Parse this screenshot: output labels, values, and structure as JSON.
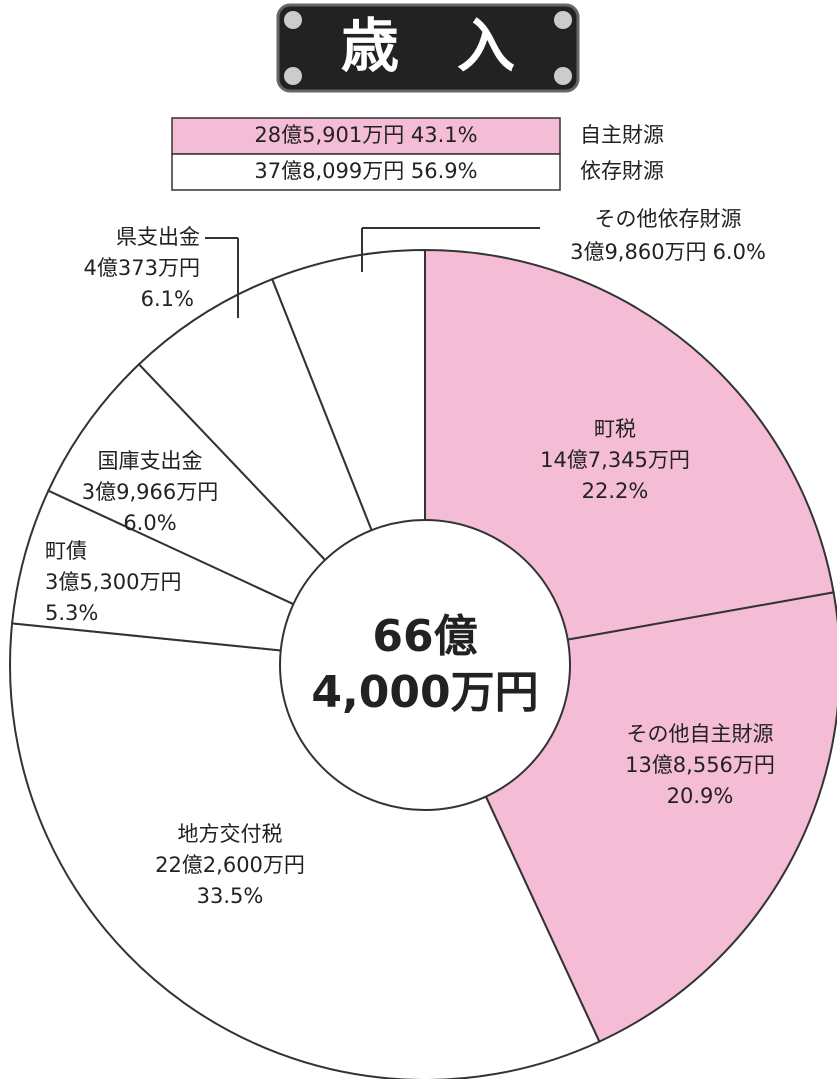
{
  "chart_data": {
    "type": "donut",
    "title": "歳　入",
    "groups": [
      {
        "label": "28億5,901万円 43.1%",
        "name": "自主財源",
        "color": "#f5bcd6"
      },
      {
        "label": "37億8,099万円 56.9%",
        "name": "依存財源",
        "color": "#ffffff"
      }
    ],
    "center_label": [
      "66億",
      "4,000万円"
    ],
    "categories": [
      "町税",
      "その他自主財源",
      "地方交付税",
      "町債",
      "国庫支出金",
      "県支出金",
      "その他依存財源"
    ],
    "values": [
      22.2,
      20.9,
      33.5,
      5.3,
      6.0,
      6.1,
      6.0
    ],
    "value_labels": [
      "22.2%",
      "20.9%",
      "33.5%",
      "5.3%",
      "6.0%",
      "6.1%",
      "6.0%"
    ],
    "amount_labels": [
      "14億7,345万円",
      "13億8,556万円",
      "22億2,600万円",
      "3億5,300万円",
      "3億9,966万円",
      "4億373万円",
      "3億9,860万円"
    ],
    "colors": [
      "#f5bcd6",
      "#f5bcd6",
      "#ffffff",
      "#ffffff",
      "#ffffff",
      "#ffffff",
      "#ffffff"
    ]
  }
}
